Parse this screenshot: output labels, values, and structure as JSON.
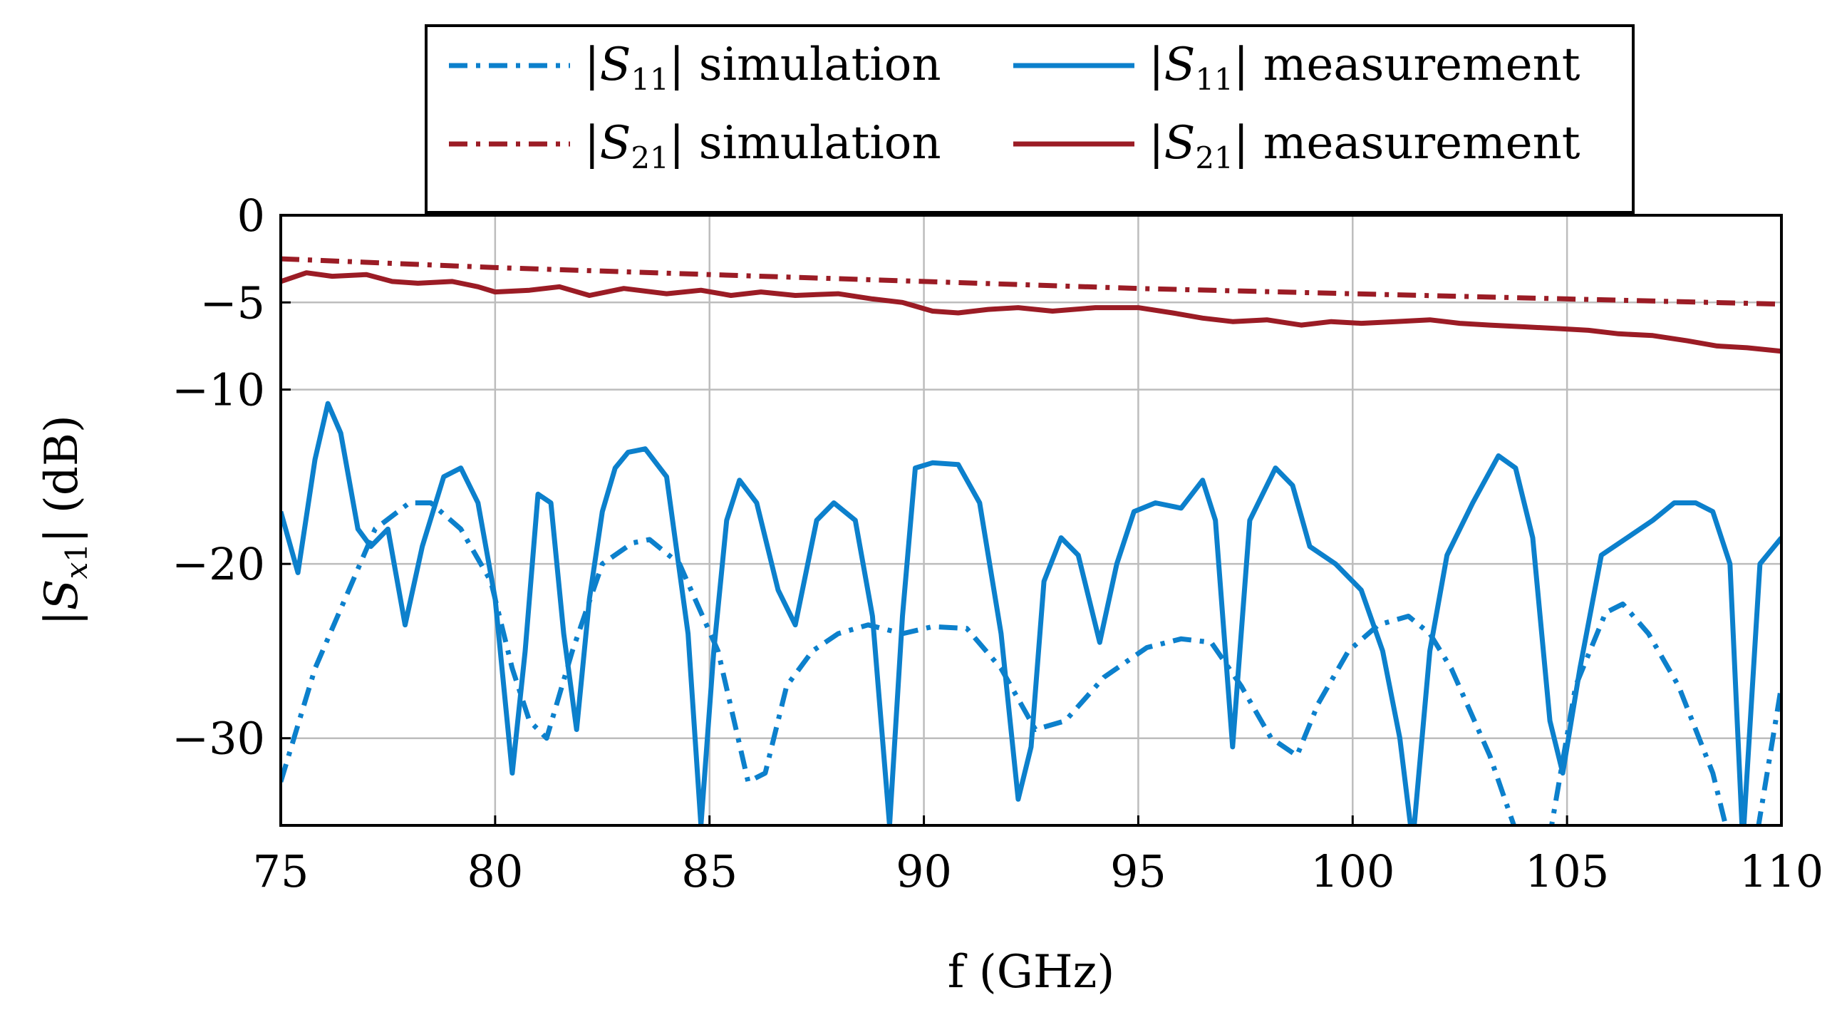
{
  "chart_data": {
    "type": "line",
    "xlabel": "f (GHz)",
    "ylabel": "|Sx1| (dB)",
    "xlim": [
      75,
      110
    ],
    "ylim": [
      -35,
      0
    ],
    "xticks": [
      75,
      80,
      85,
      90,
      95,
      100,
      105,
      110
    ],
    "yticks": [
      0,
      -5,
      -10,
      -20,
      -30
    ],
    "ytick_labels": [
      "0",
      "−5",
      "−10",
      "−20",
      "−30"
    ],
    "grid": true,
    "legend_position": "top, above plot",
    "colors": {
      "s11": "#0c80cc",
      "s21": "#9b1c25"
    },
    "series": [
      {
        "name": "|S11| simulation",
        "param": "11",
        "label_rest": "simulation",
        "color": "#0c80cc",
        "dash": "dashdot",
        "x": [
          75,
          75.8,
          76.5,
          77.2,
          78,
          78.5,
          79.2,
          79.9,
          80.4,
          80.8,
          81.2,
          81.8,
          82.5,
          83.2,
          83.6,
          84.3,
          85.2,
          85.9,
          86.3,
          86.8,
          87.4,
          88,
          88.7,
          89.5,
          90.2,
          91,
          91.8,
          92.6,
          93.3,
          94.2,
          95.2,
          96,
          96.7,
          97.4,
          98.1,
          98.7,
          99.2,
          99.9,
          100.6,
          101.3,
          101.8,
          102.3,
          103.2,
          103.9,
          104.5,
          105.2,
          105.9,
          106.3,
          106.9,
          107.6,
          108.4,
          108.8,
          109.4,
          110
        ],
        "y": [
          -32.5,
          -26,
          -22,
          -18,
          -16.5,
          -16.5,
          -18,
          -21,
          -26,
          -29,
          -30,
          -25,
          -20,
          -18.8,
          -18.6,
          -20,
          -25,
          -32.5,
          -32,
          -27,
          -25,
          -24,
          -23.5,
          -24,
          -23.6,
          -23.7,
          -26,
          -29.5,
          -29,
          -26.5,
          -24.8,
          -24.3,
          -24.5,
          -27,
          -30,
          -31,
          -28,
          -25,
          -23.5,
          -23,
          -24,
          -26,
          -31,
          -36,
          -37,
          -27,
          -22.8,
          -22.3,
          -24,
          -27,
          -32,
          -36,
          -36,
          -27
        ]
      },
      {
        "name": "|S11| measurement",
        "param": "11",
        "label_rest": "measurement",
        "color": "#0c80cc",
        "dash": "solid",
        "x": [
          75,
          75.4,
          75.8,
          76.1,
          76.4,
          76.8,
          77.1,
          77.5,
          77.9,
          78.3,
          78.8,
          79.2,
          79.6,
          80,
          80.4,
          80.7,
          81,
          81.3,
          81.6,
          81.9,
          82.2,
          82.5,
          82.8,
          83.1,
          83.5,
          84,
          84.5,
          84.8,
          85.1,
          85.4,
          85.7,
          86.1,
          86.6,
          87,
          87.5,
          87.9,
          88.4,
          88.8,
          89.2,
          89.5,
          89.8,
          90.2,
          90.8,
          91.3,
          91.8,
          92.2,
          92.5,
          92.8,
          93.2,
          93.6,
          94.1,
          94.5,
          94.9,
          95.4,
          96,
          96.5,
          96.8,
          97.2,
          97.6,
          98.2,
          98.6,
          99,
          99.6,
          100.2,
          100.7,
          101.1,
          101.4,
          101.8,
          102.2,
          102.8,
          103.4,
          103.8,
          104.2,
          104.6,
          104.9,
          105.3,
          105.8,
          106.4,
          107,
          107.5,
          108,
          108.4,
          108.8,
          109.1,
          109.5,
          110
        ],
        "y": [
          -17,
          -20.5,
          -14,
          -10.8,
          -12.5,
          -18,
          -19,
          -18,
          -23.5,
          -19,
          -15,
          -14.5,
          -16.5,
          -22,
          -32,
          -25,
          -16,
          -16.5,
          -24,
          -29.5,
          -22,
          -17,
          -14.5,
          -13.6,
          -13.4,
          -15,
          -24,
          -35,
          -25,
          -17.5,
          -15.2,
          -16.5,
          -21.5,
          -23.5,
          -17.5,
          -16.5,
          -17.5,
          -23,
          -35,
          -23,
          -14.5,
          -14.2,
          -14.3,
          -16.5,
          -24,
          -33.5,
          -30.5,
          -21,
          -18.5,
          -19.5,
          -24.5,
          -20,
          -17,
          -16.5,
          -16.8,
          -15.2,
          -17.5,
          -30.5,
          -17.5,
          -14.5,
          -15.5,
          -19,
          -20,
          -21.5,
          -25,
          -30,
          -36,
          -25,
          -19.5,
          -16.5,
          -13.8,
          -14.5,
          -18.5,
          -29,
          -32,
          -26,
          -19.5,
          -18.5,
          -17.5,
          -16.5,
          -16.5,
          -17,
          -20,
          -36,
          -20,
          -18.5
        ]
      },
      {
        "name": "|S21| simulation",
        "param": "21",
        "label_rest": "simulation",
        "color": "#9b1c25",
        "dash": "dashdot",
        "x": [
          75,
          80,
          85,
          90,
          95,
          100,
          105,
          110
        ],
        "y": [
          -2.5,
          -3,
          -3.4,
          -3.8,
          -4.2,
          -4.5,
          -4.8,
          -5.1
        ]
      },
      {
        "name": "|S21| measurement",
        "param": "21",
        "label_rest": "measurement",
        "color": "#9b1c25",
        "dash": "solid",
        "x": [
          75,
          75.6,
          76.2,
          77,
          77.6,
          78.2,
          79,
          79.6,
          80,
          80.8,
          81.5,
          82.2,
          83,
          84,
          84.8,
          85.5,
          86.2,
          87,
          88,
          88.8,
          89.5,
          90.2,
          90.8,
          91.5,
          92.2,
          93,
          94,
          95,
          95.8,
          96.5,
          97.2,
          98,
          98.8,
          99.5,
          100.2,
          101,
          101.8,
          102.5,
          103.2,
          104,
          104.8,
          105.5,
          106.2,
          107,
          107.8,
          108.5,
          109.2,
          110
        ],
        "y": [
          -3.8,
          -3.3,
          -3.5,
          -3.4,
          -3.8,
          -3.9,
          -3.8,
          -4.1,
          -4.4,
          -4.3,
          -4.1,
          -4.6,
          -4.2,
          -4.5,
          -4.3,
          -4.6,
          -4.4,
          -4.6,
          -4.5,
          -4.8,
          -5.0,
          -5.5,
          -5.6,
          -5.4,
          -5.3,
          -5.5,
          -5.3,
          -5.3,
          -5.6,
          -5.9,
          -6.1,
          -6.0,
          -6.3,
          -6.1,
          -6.2,
          -6.1,
          -6.0,
          -6.2,
          -6.3,
          -6.4,
          -6.5,
          -6.6,
          -6.8,
          -6.9,
          -7.2,
          -7.5,
          -7.6,
          -7.8
        ]
      }
    ]
  }
}
